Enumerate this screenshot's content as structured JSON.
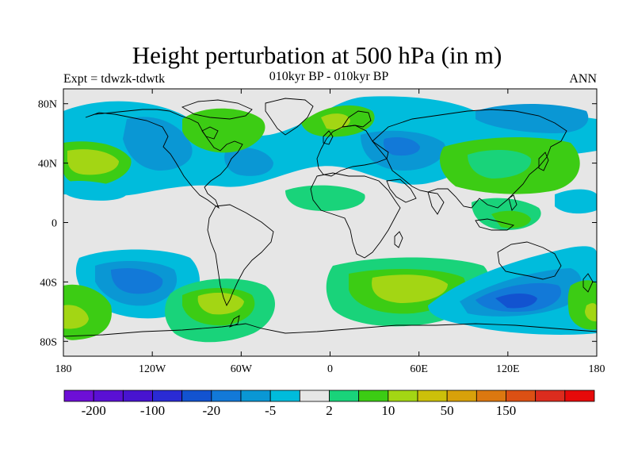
{
  "title": "Height perturbation at 500 hPa (in m)",
  "left_string": "Expt = tdwzk-tdwtk",
  "center_string": "010kyr BP - 010kyr BP",
  "right_string": "ANN",
  "map": {
    "projection": "cylindrical-equidistant",
    "lon_range": [
      -180,
      180
    ],
    "lat_range": [
      -90,
      90
    ],
    "background_color": "#e6e6e6",
    "coastline_color": "#000000",
    "lat_ticks": [
      "80N",
      "40N",
      "0",
      "40S",
      "80S"
    ],
    "lon_ticks": [
      "180",
      "120W",
      "60W",
      "0",
      "60E",
      "120E",
      "180"
    ]
  },
  "colorbar": {
    "colors": [
      "#6d0fd6",
      "#5a10d4",
      "#4814d0",
      "#2a2bd4",
      "#1253d0",
      "#1279d8",
      "#0a97d4",
      "#00bcdc",
      "#e6e6e6",
      "#19d37a",
      "#3ccc14",
      "#a3d614",
      "#ccc00a",
      "#d8a10a",
      "#dc7810",
      "#dc5014",
      "#dc2c1e",
      "#e60a0a"
    ],
    "labels": [
      "-200",
      "-100",
      "-20",
      "-5",
      "2",
      "10",
      "50",
      "150"
    ]
  },
  "chart_data": {
    "type": "filled-contour map",
    "variable": "Height perturbation at 500 hPa",
    "units": "m",
    "season": "ANN",
    "regions": [
      {
        "lon": -150,
        "lat": 63,
        "value": -5
      },
      {
        "lon": -160,
        "lat": 43,
        "value": 10
      },
      {
        "lon": -175,
        "lat": 22,
        "value": -5
      },
      {
        "lon": -92,
        "lat": 30,
        "value": -5
      },
      {
        "lon": -110,
        "lat": 48,
        "value": -20
      },
      {
        "lon": -78,
        "lat": 67,
        "value": 5
      },
      {
        "lon": -68,
        "lat": 45,
        "value": -5
      },
      {
        "lon": -40,
        "lat": 43,
        "value": -5
      },
      {
        "lon": -15,
        "lat": 70,
        "value": -5
      },
      {
        "lon": 0,
        "lat": 20,
        "value": 5
      },
      {
        "lon": 32,
        "lat": 62,
        "value": 5
      },
      {
        "lon": 65,
        "lat": 50,
        "value": -20
      },
      {
        "lon": 100,
        "lat": 37,
        "value": 5
      },
      {
        "lon": 140,
        "lat": 42,
        "value": 5
      },
      {
        "lon": 150,
        "lat": 64,
        "value": -5
      },
      {
        "lon": 165,
        "lat": 20,
        "value": -5
      },
      {
        "lon": 115,
        "lat": 5,
        "value": 5
      },
      {
        "lon": 140,
        "lat": -5,
        "value": 5
      },
      {
        "lon": -145,
        "lat": -38,
        "value": -20
      },
      {
        "lon": -70,
        "lat": -55,
        "value": 10
      },
      {
        "lon": -175,
        "lat": -60,
        "value": 10
      },
      {
        "lon": 45,
        "lat": -45,
        "value": 10
      },
      {
        "lon": 125,
        "lat": -50,
        "value": -20
      },
      {
        "lon": 175,
        "lat": -50,
        "value": 5
      }
    ]
  }
}
